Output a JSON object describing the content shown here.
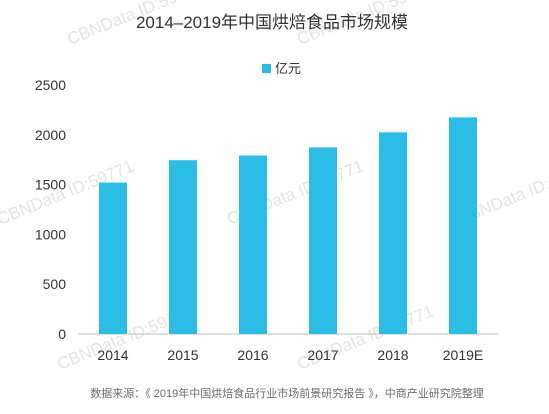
{
  "chart_data": {
    "type": "bar",
    "title": "2014–2019年中国烘焙食品市场规模",
    "categories": [
      "2014",
      "2015",
      "2016",
      "2017",
      "2018",
      "2019E"
    ],
    "series": [
      {
        "name": "亿元",
        "values": [
          1520,
          1745,
          1792,
          1874,
          2025,
          2175
        ]
      }
    ],
    "y_ticks": [
      0,
      500,
      1000,
      1500,
      2000,
      2500
    ],
    "ylim": [
      0,
      2500
    ],
    "grid": false,
    "legend_position": "top-center",
    "bar_color": "#2bbde6",
    "source": "数据来源：《 2019年中国烘焙食品行业市场前景研究报告 》，中商产业研究院整理"
  },
  "watermark": "CBNData ID:59771"
}
